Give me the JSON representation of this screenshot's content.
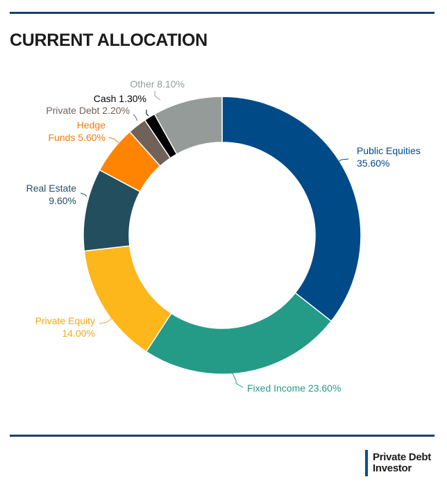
{
  "title": "CURRENT ALLOCATION",
  "colors": {
    "rule": "#1a3f6b",
    "logo_bar": "#0d4f8b"
  },
  "logo": {
    "line1": "Private Debt",
    "line2": "Investor"
  },
  "chart_data": {
    "type": "pie",
    "variant": "donut",
    "start_position": "12 o'clock",
    "direction": "clockwise",
    "unit": "%",
    "slices": [
      {
        "name": "Public Equities",
        "value": 35.6,
        "label_lines": [
          "Public Equities",
          "35.60%"
        ],
        "color": "#004a87",
        "label_color": "#004a87"
      },
      {
        "name": "Fixed Income",
        "value": 23.6,
        "label_lines": [
          "Fixed Income 23.60%"
        ],
        "color": "#249b87",
        "label_color": "#249b87"
      },
      {
        "name": "Private Equity",
        "value": 14.0,
        "label_lines": [
          "Private Equity",
          "14.00%"
        ],
        "color": "#fdb71b",
        "label_color": "#f2a81c"
      },
      {
        "name": "Real Estate",
        "value": 9.6,
        "label_lines": [
          "Real Estate",
          "9.60%"
        ],
        "color": "#234e5e",
        "label_color": "#234e5e"
      },
      {
        "name": "Hedge Funds",
        "value": 5.6,
        "label_lines": [
          "Hedge",
          "Funds 5.60%"
        ],
        "color": "#fe8402",
        "label_color": "#f07d0a"
      },
      {
        "name": "Private Debt",
        "value": 2.2,
        "label_lines": [
          "Private Debt 2.20%"
        ],
        "color": "#706259",
        "label_color": "#706259"
      },
      {
        "name": "Cash",
        "value": 1.3,
        "label_lines": [
          "Cash 1.30%"
        ],
        "color": "#000000",
        "label_color": "#000000"
      },
      {
        "name": "Other",
        "value": 8.1,
        "label_lines": [
          "Other 8.10%"
        ],
        "color": "#949b98",
        "label_color": "#949b98"
      }
    ]
  }
}
